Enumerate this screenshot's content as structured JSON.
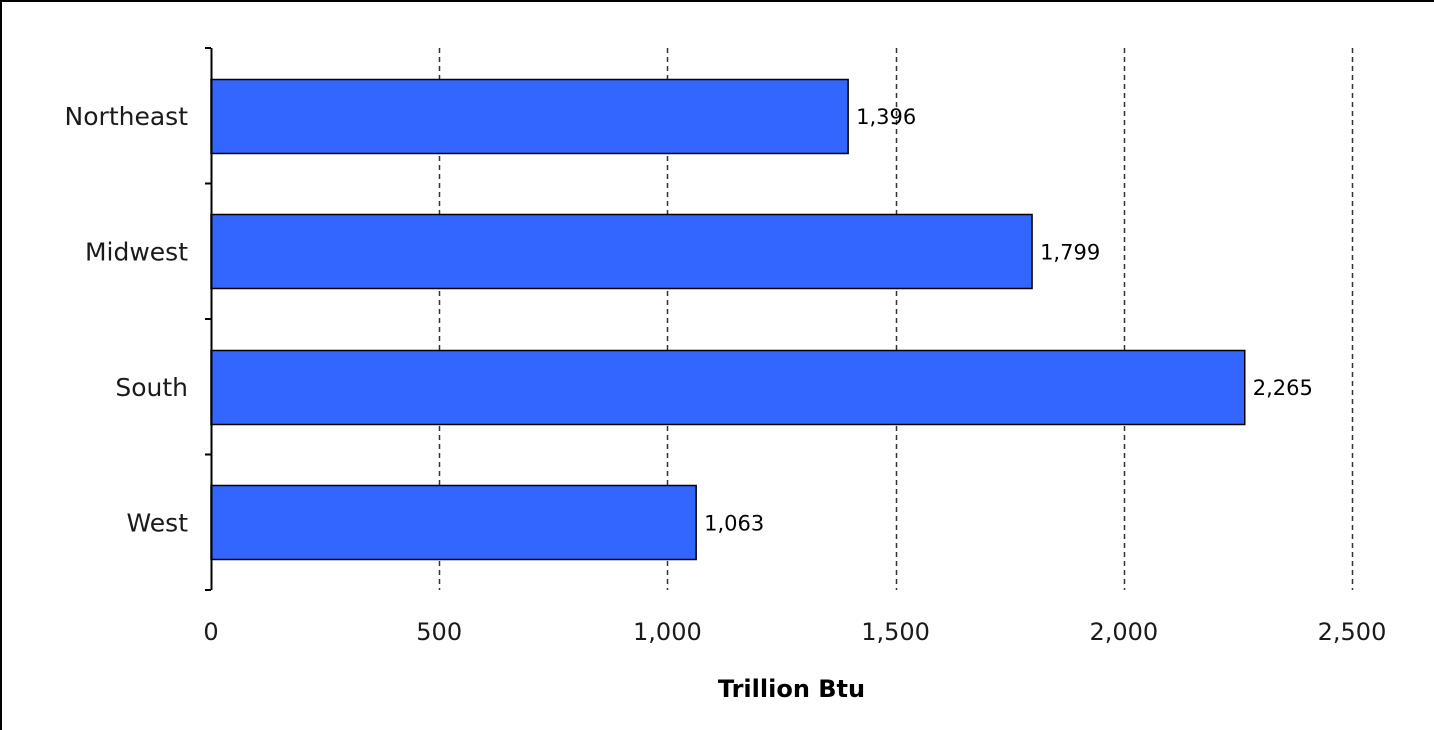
{
  "chart_data": {
    "type": "bar",
    "orientation": "horizontal",
    "categories": [
      "Northeast",
      "Midwest",
      "South",
      "West"
    ],
    "values": [
      1396,
      1799,
      2265,
      1063
    ],
    "data_labels": [
      "1,396",
      "1,799",
      "2,265",
      "1,063"
    ],
    "xlabel": "Trillion Btu",
    "ylabel": "",
    "xlim": [
      0,
      2500
    ],
    "xticks": [
      0,
      500,
      1000,
      1500,
      2000,
      2500
    ],
    "xtick_labels": [
      "0",
      "500",
      "1,000",
      "1,500",
      "2,000",
      "2,500"
    ],
    "grid": "vertical dashed",
    "legend": "none",
    "bar_color": "#3366ff",
    "bar_edge_color": "#000000"
  }
}
